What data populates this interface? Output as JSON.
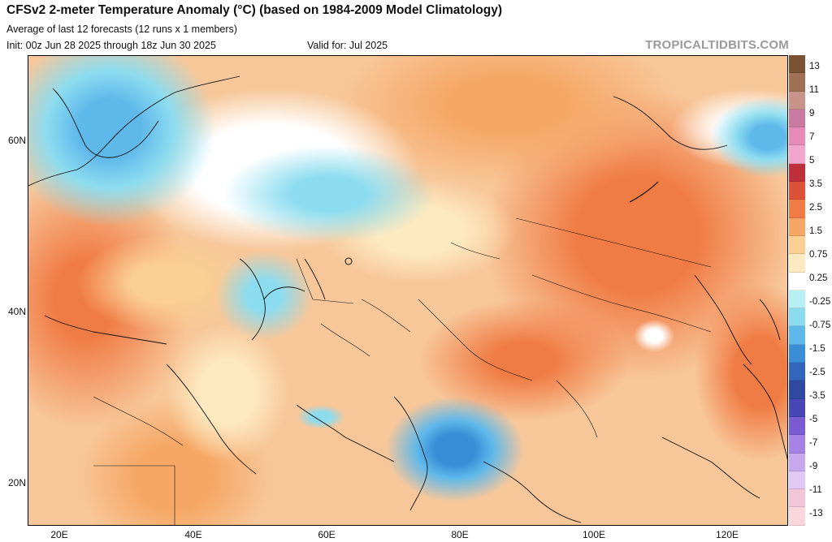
{
  "header": {
    "title": "CFSv2 2-meter Temperature Anomaly (°C) (based on 1984-2009 Model Climatology)",
    "subtitle": "Average of last 12 forecasts (12 runs x 1 members)",
    "init": "Init: 00z Jun 28 2025 through 18z Jun 30 2025",
    "valid": "Valid for: Jul 2025",
    "brand": "TROPICALTIDBITS.COM"
  },
  "axes": {
    "lat_labels": [
      "60N",
      "40N",
      "20N"
    ],
    "lon_labels": [
      "20E",
      "40E",
      "60E",
      "80E",
      "100E",
      "120E"
    ]
  },
  "colorbar": {
    "labels": [
      "13",
      "11",
      "9",
      "7",
      "5",
      "3.5",
      "2.5",
      "1.5",
      "0.75",
      "0.25",
      "-0.25",
      "-0.75",
      "-1.5",
      "-2.5",
      "-3.5",
      "-5",
      "-7",
      "-9",
      "-11",
      "-13"
    ],
    "colors": [
      "#7a5234",
      "#a07055",
      "#c8948a",
      "#c97aa0",
      "#e68ab8",
      "#f2a6cb",
      "#c0303a",
      "#dd5138",
      "#f07c45",
      "#f6a765",
      "#fbce93",
      "#fde9c0",
      "#ffffff",
      "#b7f0f2",
      "#8cdcef",
      "#5fb8ea",
      "#3a8ed6",
      "#3166bb",
      "#2d4aa0",
      "#4646b5",
      "#7a5bd2",
      "#a583e2",
      "#c7a8ec",
      "#e2c8f4",
      "#f2c6d6",
      "#f8d6dc"
    ]
  },
  "legend_colors": {
    "neutral": "#ffffff",
    "warm_light": "#fbce93",
    "warm_mid": "#f6a765",
    "warm_strong": "#f07c45",
    "cool_light": "#b7f0f2",
    "cool_mid": "#8cdcef",
    "cool_strong": "#5fb8ea",
    "cool_deep": "#3a8ed6"
  }
}
